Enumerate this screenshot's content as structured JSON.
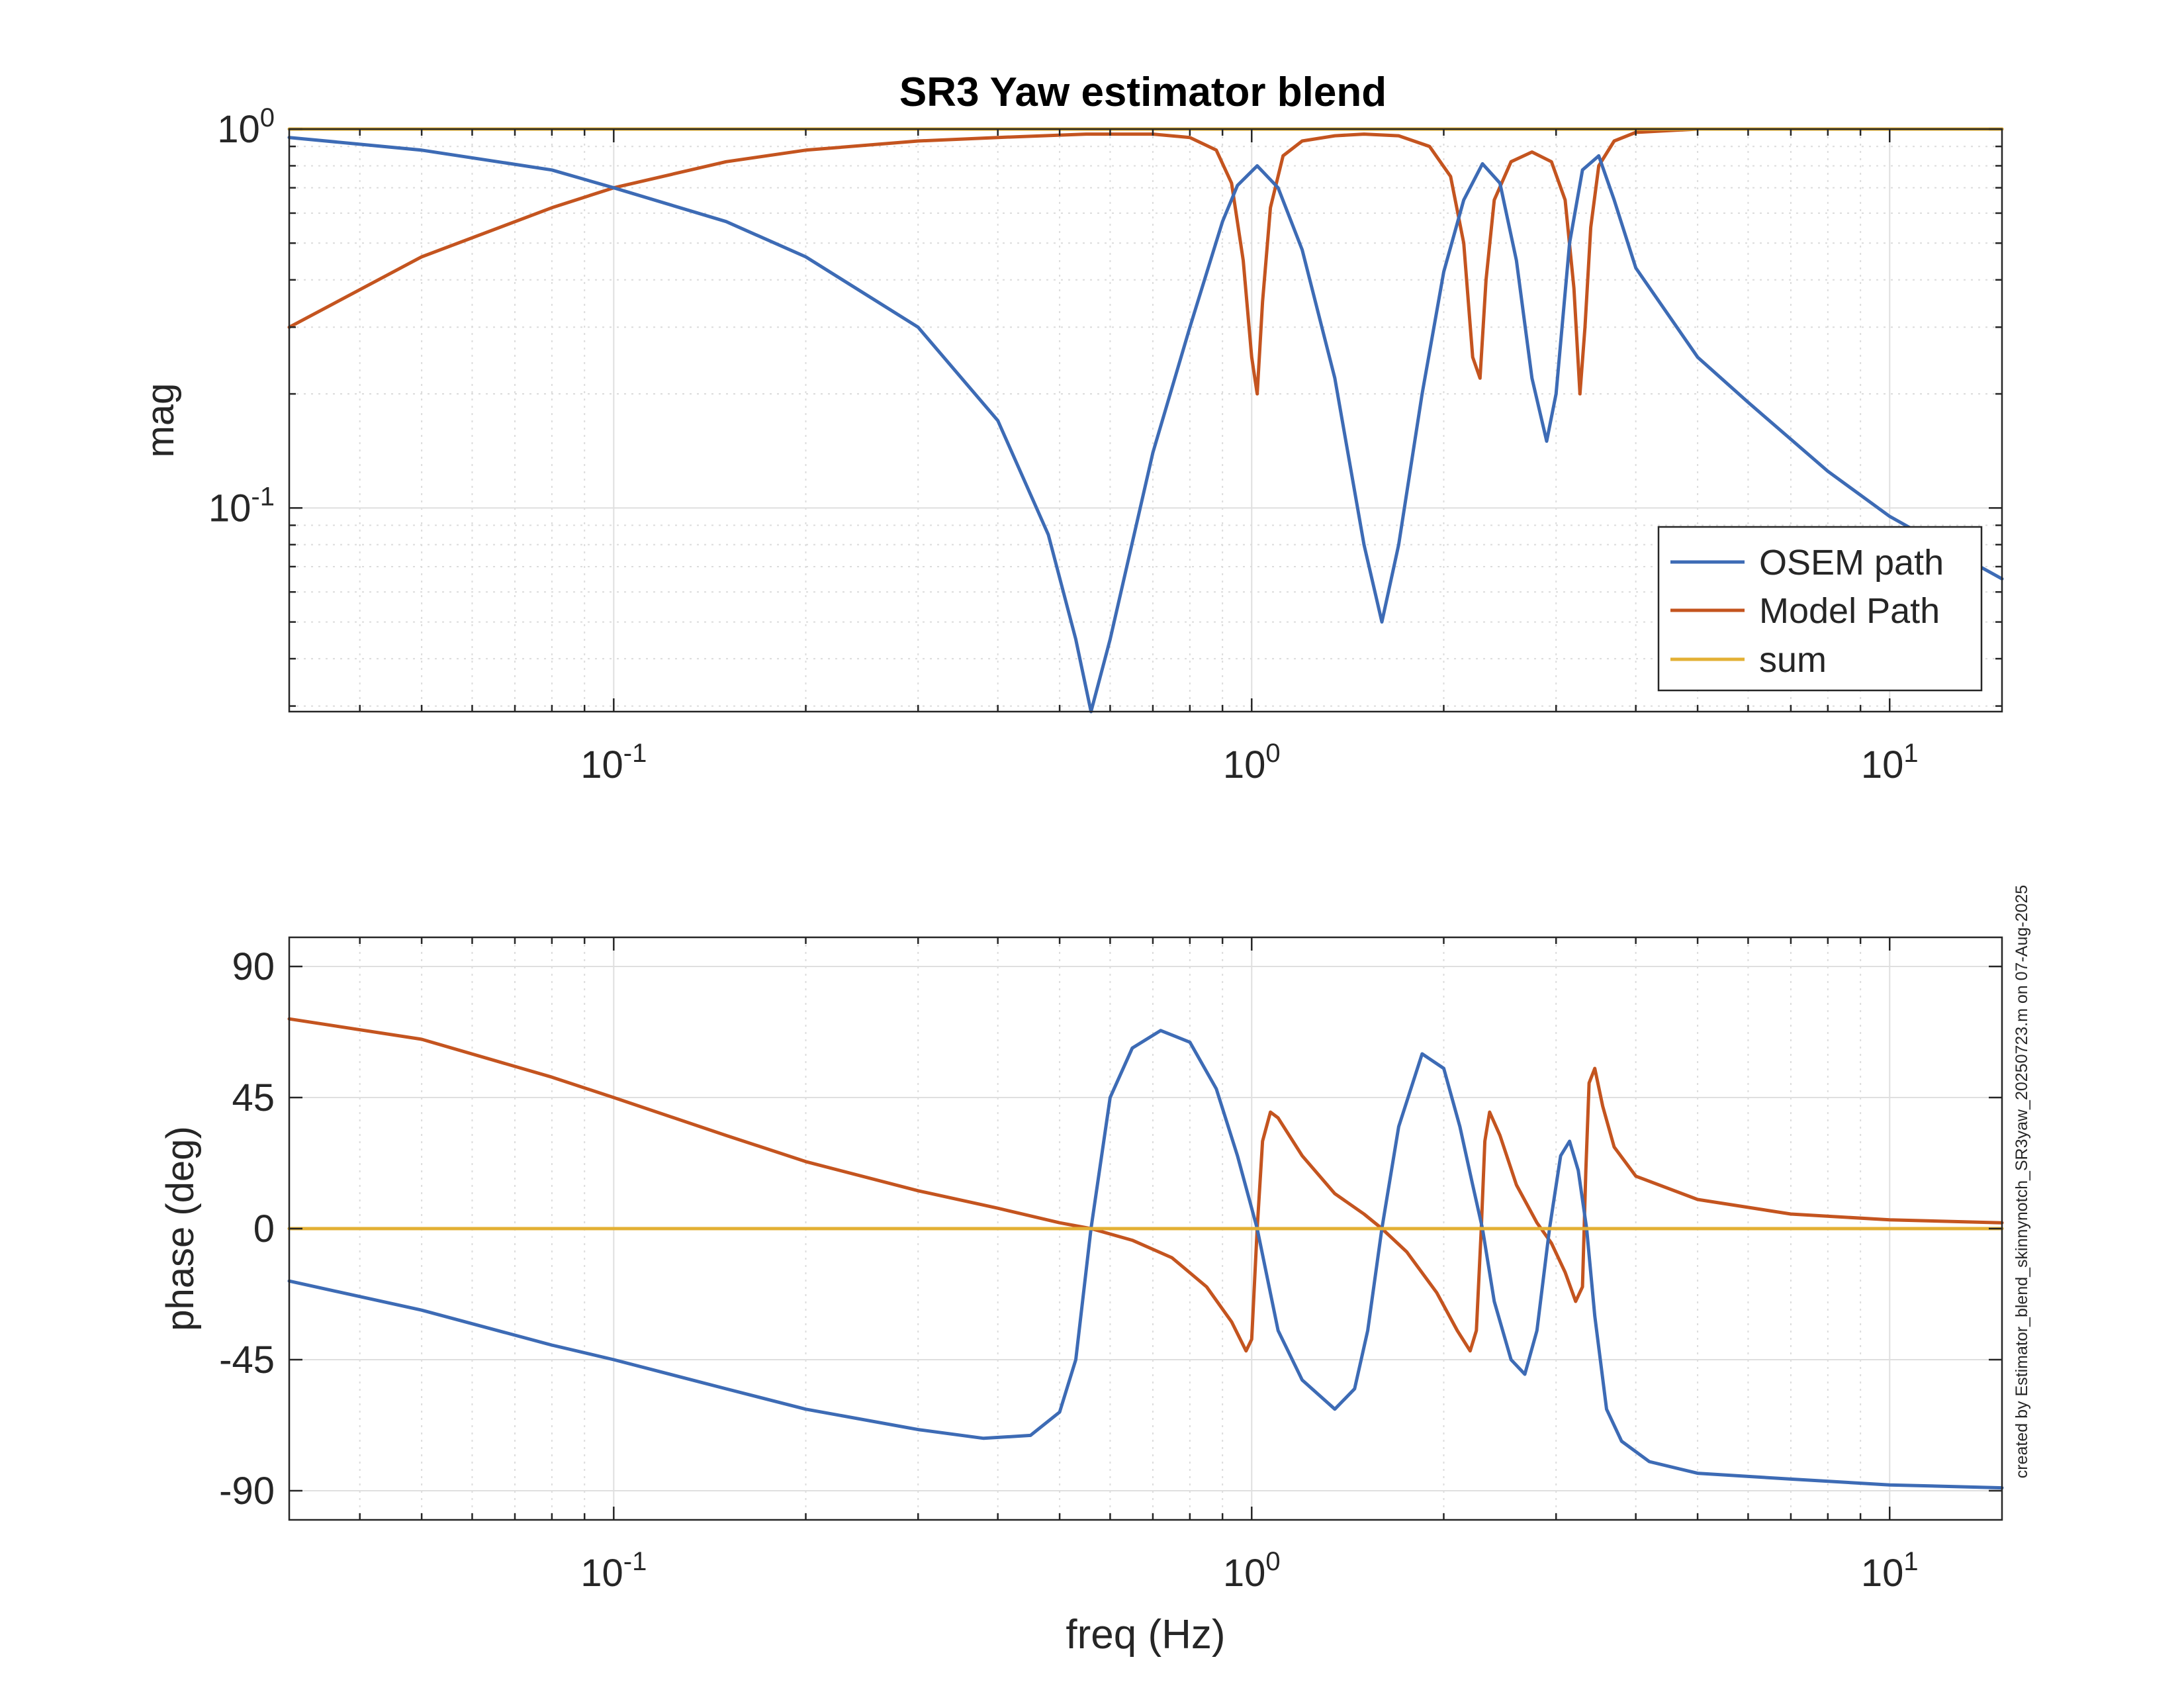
{
  "figure": {
    "title": "SR3 Yaw estimator blend",
    "credit": "created by Estimator_blend_skinnynotch_SR3yaw_20250723.m on 07-Aug-2025"
  },
  "colors": {
    "osem": "#3d6bb5",
    "model": "#c4541f",
    "sum": "#e3b034"
  },
  "chart_data": [
    {
      "type": "line",
      "name": "magnitude",
      "xlabel": "",
      "ylabel": "mag",
      "xscale": "log",
      "yscale": "log",
      "xlim": [
        0.031,
        15
      ],
      "ylim": [
        0.029,
        1.0
      ],
      "xticks": [
        {
          "value": 0.1,
          "base": "10",
          "exp": "-1"
        },
        {
          "value": 1,
          "base": "10",
          "exp": "0"
        },
        {
          "value": 10,
          "base": "10",
          "exp": "1"
        }
      ],
      "yticks": [
        {
          "value": 0.1,
          "base": "10",
          "exp": "-1"
        },
        {
          "value": 1,
          "base": "10",
          "exp": "0"
        }
      ],
      "grid": true,
      "legend": {
        "location": "bottom-right",
        "entries": [
          "OSEM path",
          "Model Path",
          "sum"
        ]
      },
      "series": [
        {
          "name": "OSEM path",
          "x": [
            0.031,
            0.05,
            0.08,
            0.1,
            0.15,
            0.2,
            0.3,
            0.4,
            0.48,
            0.53,
            0.56,
            0.6,
            0.7,
            0.8,
            0.9,
            0.95,
            1.02,
            1.1,
            1.2,
            1.35,
            1.5,
            1.6,
            1.7,
            1.85,
            2.0,
            2.15,
            2.3,
            2.45,
            2.6,
            2.75,
            2.9,
            3.0,
            3.15,
            3.3,
            3.5,
            3.7,
            4.0,
            5.0,
            6.0,
            8.0,
            10.0,
            12.0,
            15.0
          ],
          "y": [
            0.95,
            0.88,
            0.78,
            0.7,
            0.57,
            0.46,
            0.3,
            0.17,
            0.085,
            0.045,
            0.029,
            0.045,
            0.14,
            0.3,
            0.57,
            0.71,
            0.8,
            0.7,
            0.48,
            0.22,
            0.08,
            0.05,
            0.08,
            0.2,
            0.42,
            0.65,
            0.81,
            0.72,
            0.45,
            0.22,
            0.15,
            0.2,
            0.5,
            0.78,
            0.85,
            0.65,
            0.43,
            0.25,
            0.19,
            0.125,
            0.095,
            0.08,
            0.065
          ]
        },
        {
          "name": "Model Path",
          "x": [
            0.031,
            0.05,
            0.08,
            0.1,
            0.15,
            0.2,
            0.3,
            0.4,
            0.55,
            0.7,
            0.8,
            0.88,
            0.93,
            0.97,
            1.0,
            1.02,
            1.04,
            1.07,
            1.12,
            1.2,
            1.35,
            1.5,
            1.7,
            1.9,
            2.05,
            2.15,
            2.22,
            2.28,
            2.33,
            2.4,
            2.55,
            2.75,
            2.95,
            3.1,
            3.2,
            3.27,
            3.33,
            3.4,
            3.5,
            3.7,
            4.0,
            5.0,
            7.0,
            10.0,
            15.0
          ],
          "y": [
            0.3,
            0.46,
            0.62,
            0.7,
            0.82,
            0.88,
            0.93,
            0.95,
            0.97,
            0.97,
            0.95,
            0.88,
            0.72,
            0.45,
            0.25,
            0.2,
            0.35,
            0.62,
            0.85,
            0.93,
            0.96,
            0.97,
            0.96,
            0.9,
            0.75,
            0.5,
            0.25,
            0.22,
            0.4,
            0.65,
            0.82,
            0.87,
            0.82,
            0.65,
            0.38,
            0.2,
            0.3,
            0.55,
            0.8,
            0.93,
            0.98,
            1.0,
            1.0,
            1.0,
            1.0
          ]
        },
        {
          "name": "sum",
          "x": [
            0.031,
            15.0
          ],
          "y": [
            1.0,
            1.0
          ]
        }
      ]
    },
    {
      "type": "line",
      "name": "phase",
      "xlabel": "freq (Hz)",
      "ylabel": "phase (deg)",
      "xscale": "log",
      "yscale": "linear",
      "xlim": [
        0.031,
        15
      ],
      "ylim": [
        -100,
        100
      ],
      "xticks": [
        {
          "value": 0.1,
          "base": "10",
          "exp": "-1"
        },
        {
          "value": 1,
          "base": "10",
          "exp": "0"
        },
        {
          "value": 10,
          "base": "10",
          "exp": "1"
        }
      ],
      "yticks": [
        {
          "value": 90,
          "label": "90"
        },
        {
          "value": 45,
          "label": "45"
        },
        {
          "value": 0,
          "label": "0"
        },
        {
          "value": -45,
          "label": "-45"
        },
        {
          "value": -90,
          "label": "-90"
        }
      ],
      "grid": true,
      "series": [
        {
          "name": "OSEM path",
          "x": [
            0.031,
            0.05,
            0.08,
            0.1,
            0.15,
            0.2,
            0.3,
            0.38,
            0.45,
            0.5,
            0.53,
            0.56,
            0.6,
            0.65,
            0.72,
            0.8,
            0.88,
            0.95,
            1.02,
            1.1,
            1.2,
            1.35,
            1.45,
            1.52,
            1.6,
            1.7,
            1.85,
            2.0,
            2.12,
            2.22,
            2.3,
            2.4,
            2.55,
            2.68,
            2.8,
            2.93,
            3.05,
            3.15,
            3.25,
            3.35,
            3.45,
            3.6,
            3.8,
            4.2,
            5.0,
            7.0,
            10.0,
            15.0
          ],
          "y": [
            -18,
            -28,
            -40,
            -45,
            -55,
            -62,
            -69,
            -72,
            -71,
            -63,
            -45,
            0,
            45,
            62,
            68,
            64,
            48,
            25,
            0,
            -35,
            -52,
            -62,
            -55,
            -35,
            0,
            35,
            60,
            55,
            35,
            15,
            0,
            -25,
            -45,
            -50,
            -35,
            0,
            25,
            30,
            20,
            0,
            -30,
            -62,
            -73,
            -80,
            -84,
            -86,
            -88,
            -89
          ]
        },
        {
          "name": "Model Path",
          "x": [
            0.031,
            0.05,
            0.08,
            0.1,
            0.15,
            0.2,
            0.3,
            0.4,
            0.5,
            0.56,
            0.65,
            0.75,
            0.85,
            0.93,
            0.98,
            1.0,
            1.02,
            1.04,
            1.07,
            1.1,
            1.2,
            1.35,
            1.5,
            1.6,
            1.75,
            1.95,
            2.1,
            2.2,
            2.25,
            2.29,
            2.32,
            2.36,
            2.45,
            2.6,
            2.8,
            2.95,
            3.1,
            3.22,
            3.3,
            3.34,
            3.38,
            3.45,
            3.55,
            3.7,
            4.0,
            5.0,
            7.0,
            10.0,
            15.0
          ],
          "y": [
            72,
            65,
            52,
            45,
            32,
            23,
            13,
            7,
            2,
            0,
            -4,
            -10,
            -20,
            -32,
            -42,
            -38,
            0,
            30,
            40,
            38,
            25,
            12,
            5,
            0,
            -8,
            -22,
            -35,
            -42,
            -35,
            0,
            30,
            40,
            32,
            15,
            2,
            -5,
            -15,
            -25,
            -20,
            20,
            50,
            55,
            42,
            28,
            18,
            10,
            5,
            3,
            2
          ]
        },
        {
          "name": "sum",
          "x": [
            0.031,
            15.0
          ],
          "y": [
            0,
            0
          ]
        }
      ]
    }
  ]
}
